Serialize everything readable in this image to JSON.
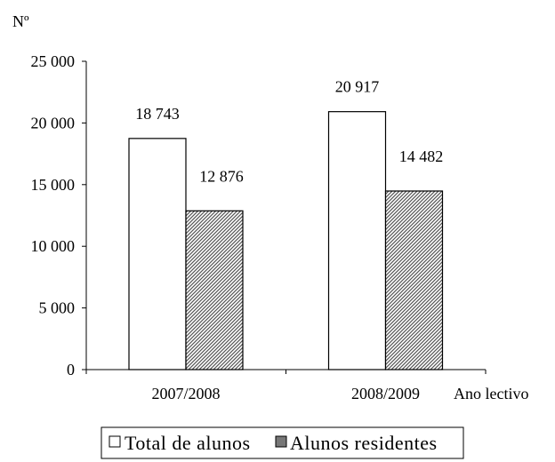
{
  "chart_data": {
    "type": "bar",
    "ylabel": "Nº",
    "xlabel": "Ano lectivo",
    "categories": [
      "2007/2008",
      "2008/2009"
    ],
    "series": [
      {
        "name": "Total de alunos",
        "values": [
          18743,
          20917
        ],
        "data_labels": [
          "18 743",
          "20 917"
        ],
        "fill": "white"
      },
      {
        "name": "Alunos residentes",
        "values": [
          12876,
          14482
        ],
        "data_labels": [
          "12 876",
          "14 482"
        ],
        "fill": "diagonal-hatch"
      }
    ],
    "ylim": [
      0,
      25000
    ],
    "yticks": [
      0,
      5000,
      10000,
      15000,
      20000,
      25000
    ],
    "ytick_labels": [
      "0",
      "5 000",
      "10 000",
      "15 000",
      "20 000",
      "25 000"
    ],
    "grid": false,
    "legend_position": "bottom",
    "colors": {
      "bar_stroke": "#000000",
      "hatch": "#555555"
    }
  }
}
